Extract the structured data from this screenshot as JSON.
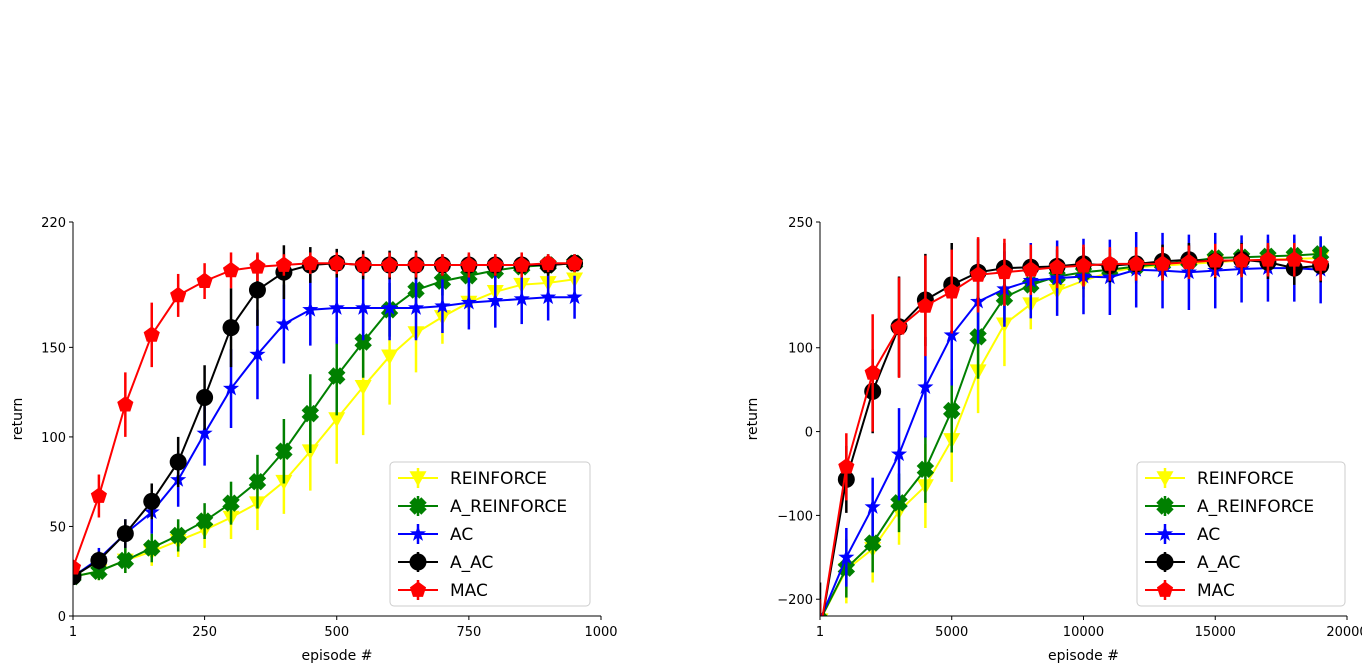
{
  "chart_data": [
    {
      "type": "line",
      "xlabel": "episode #",
      "ylabel": "return",
      "xlim": [
        1,
        1000
      ],
      "ylim": [
        0,
        220
      ],
      "xticks": [
        1,
        250,
        500,
        750,
        1000
      ],
      "yticks": [
        0,
        50,
        100,
        150,
        220
      ],
      "grid": false,
      "legend_position": "bottom-right",
      "x": [
        1,
        50,
        100,
        150,
        200,
        250,
        300,
        350,
        400,
        450,
        500,
        550,
        600,
        650,
        700,
        750,
        800,
        850,
        900,
        950
      ],
      "series": [
        {
          "name": "REINFORCE",
          "color": "#ffff00",
          "marker": "triangle-down",
          "values": [
            22,
            25,
            31,
            36,
            42,
            48,
            55,
            63,
            75,
            92,
            110,
            128,
            145,
            158,
            167,
            175,
            181,
            185,
            186,
            188
          ],
          "error": [
            3,
            5,
            7,
            8,
            9,
            10,
            12,
            15,
            18,
            22,
            25,
            27,
            27,
            22,
            15,
            12,
            10,
            8,
            7,
            6
          ]
        },
        {
          "name": "A_REINFORCE",
          "color": "#008000",
          "marker": "x-filled",
          "values": [
            22,
            25,
            31,
            38,
            45,
            53,
            63,
            75,
            92,
            113,
            134,
            153,
            171,
            182,
            187,
            190,
            193,
            195,
            196,
            197
          ],
          "error": [
            3,
            5,
            7,
            8,
            9,
            10,
            12,
            15,
            18,
            22,
            22,
            20,
            15,
            10,
            8,
            6,
            5,
            4,
            4,
            3
          ]
        },
        {
          "name": "AC",
          "color": "#0000ff",
          "marker": "star",
          "values": [
            22,
            32,
            46,
            58,
            76,
            102,
            127,
            146,
            163,
            171,
            172,
            172,
            172,
            172,
            173,
            175,
            176,
            177,
            178,
            178
          ],
          "error": [
            3,
            6,
            8,
            12,
            15,
            18,
            22,
            25,
            22,
            20,
            20,
            18,
            18,
            18,
            15,
            15,
            15,
            14,
            13,
            12
          ]
        },
        {
          "name": "A_AC",
          "color": "#000000",
          "marker": "circle",
          "values": [
            22,
            31,
            46,
            64,
            86,
            122,
            161,
            182,
            192,
            196,
            197,
            196,
            196,
            196,
            196,
            196,
            196,
            196,
            196,
            197
          ],
          "error": [
            3,
            5,
            8,
            10,
            14,
            18,
            22,
            20,
            15,
            10,
            8,
            8,
            8,
            8,
            6,
            6,
            6,
            6,
            6,
            5
          ]
        },
        {
          "name": "MAC",
          "color": "#ff0000",
          "marker": "pentagon",
          "values": [
            27,
            67,
            118,
            157,
            179,
            187,
            193,
            195,
            196,
            197,
            197,
            196,
            196,
            196,
            196,
            196,
            196,
            196,
            197,
            197
          ],
          "error": [
            3,
            12,
            18,
            18,
            12,
            10,
            10,
            8,
            6,
            6,
            6,
            6,
            7,
            7,
            6,
            7,
            6,
            7,
            5,
            5
          ]
        }
      ]
    },
    {
      "type": "line",
      "xlabel": "episode #",
      "ylabel": "return",
      "xlim": [
        1,
        20000
      ],
      "ylim": [
        -220,
        250
      ],
      "xticks": [
        1,
        5000,
        10000,
        15000,
        20000
      ],
      "yticks": [
        -200,
        -100,
        0,
        100,
        250
      ],
      "grid": false,
      "legend_position": "bottom-right",
      "x": [
        1,
        1000,
        2000,
        3000,
        4000,
        5000,
        6000,
        7000,
        8000,
        9000,
        10000,
        11000,
        12000,
        13000,
        14000,
        15000,
        16000,
        17000,
        18000,
        19000
      ],
      "series": [
        {
          "name": "REINFORCE",
          "color": "#ffff00",
          "marker": "triangle-down",
          "values": [
            -225,
            -165,
            -140,
            -95,
            -65,
            -10,
            72,
            128,
            152,
            168,
            180,
            190,
            196,
            198,
            200,
            202,
            204,
            205,
            206,
            207
          ],
          "error": [
            20,
            40,
            40,
            40,
            50,
            50,
            50,
            50,
            30,
            25,
            20,
            20,
            20,
            20,
            20,
            20,
            20,
            20,
            20,
            20
          ]
        },
        {
          "name": "A_REINFORCE",
          "color": "#008000",
          "marker": "x-filled",
          "values": [
            -225,
            -163,
            -133,
            -85,
            -45,
            25,
            113,
            160,
            175,
            185,
            190,
            193,
            197,
            200,
            203,
            207,
            208,
            209,
            210,
            212
          ],
          "error": [
            20,
            35,
            35,
            35,
            40,
            50,
            50,
            30,
            25,
            20,
            20,
            20,
            20,
            20,
            20,
            20,
            20,
            20,
            20,
            20
          ]
        },
        {
          "name": "AC",
          "color": "#0000ff",
          "marker": "star",
          "values": [
            -225,
            -150,
            -90,
            -27,
            53,
            115,
            155,
            170,
            180,
            183,
            185,
            184,
            193,
            192,
            190,
            192,
            194,
            195,
            195,
            193
          ],
          "error": [
            20,
            35,
            35,
            55,
            60,
            60,
            50,
            45,
            45,
            45,
            45,
            45,
            45,
            45,
            45,
            45,
            40,
            40,
            40,
            40
          ]
        },
        {
          "name": "A_AC",
          "color": "#000000",
          "marker": "circle",
          "values": [
            -240,
            -57,
            48,
            125,
            157,
            175,
            190,
            195,
            196,
            197,
            200,
            198,
            200,
            203,
            205,
            203,
            205,
            202,
            195,
            198
          ],
          "error": [
            60,
            40,
            50,
            60,
            55,
            50,
            40,
            30,
            25,
            20,
            20,
            20,
            20,
            20,
            20,
            20,
            20,
            20,
            20,
            20
          ]
        },
        {
          "name": "MAC",
          "color": "#ff0000",
          "marker": "pentagon",
          "values": [
            -240,
            -42,
            70,
            124,
            150,
            167,
            187,
            190,
            193,
            196,
            198,
            200,
            200,
            200,
            202,
            204,
            204,
            205,
            205,
            200
          ],
          "error": [
            40,
            40,
            70,
            60,
            60,
            50,
            45,
            40,
            30,
            25,
            25,
            20,
            20,
            20,
            20,
            20,
            20,
            20,
            20,
            20
          ]
        }
      ]
    }
  ]
}
